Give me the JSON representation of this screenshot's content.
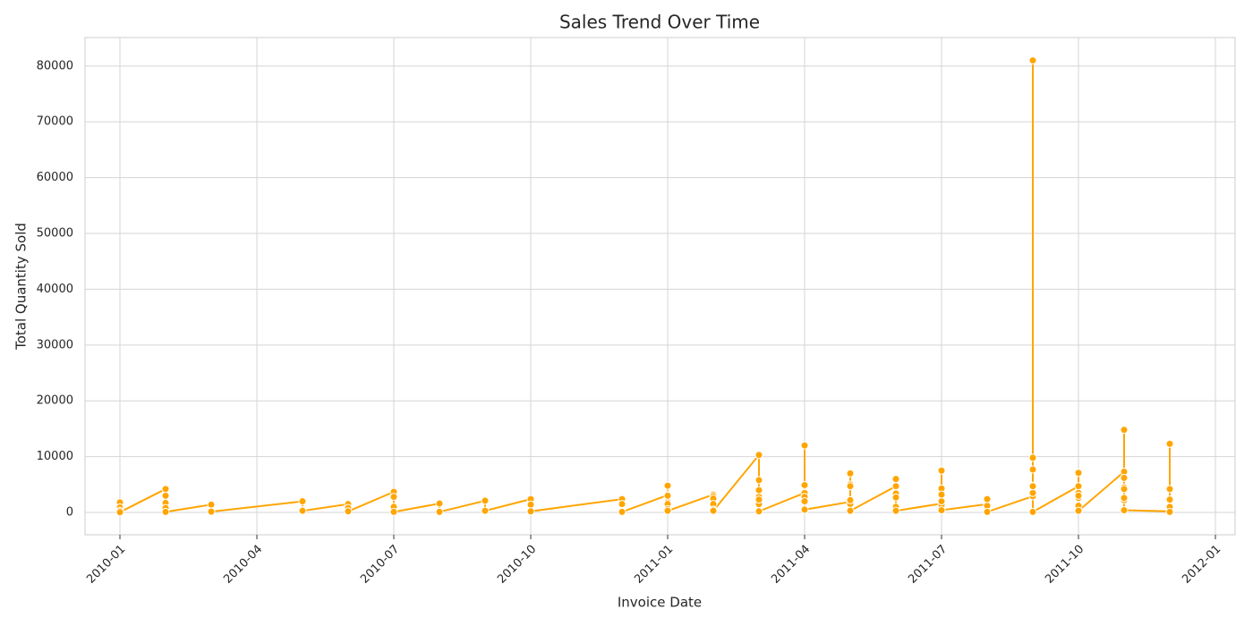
{
  "chart_data": {
    "type": "line",
    "title": "Sales Trend Over Time",
    "x_label": "Invoice Date",
    "y_label": "Total Quantity Sold",
    "x": [
      "2010-01",
      "2010-01",
      "2010-01",
      "2010-01",
      "2010-02",
      "2010-02",
      "2010-02",
      "2010-02",
      "2010-02",
      "2010-03",
      "2010-03",
      "2010-03",
      "2010-05",
      "2010-05",
      "2010-05",
      "2010-06",
      "2010-06",
      "2010-06",
      "2010-07",
      "2010-07",
      "2010-07",
      "2010-07",
      "2010-08",
      "2010-08",
      "2010-09",
      "2010-09",
      "2010-10",
      "2010-10",
      "2010-10",
      "2010-12",
      "2010-12",
      "2010-12",
      "2011-01",
      "2011-01",
      "2011-01",
      "2011-01",
      "2011-01",
      "2011-01",
      "2011-01",
      "2011-01",
      "2011-02",
      "2011-02",
      "2011-02",
      "2011-02",
      "2011-02",
      "2011-02",
      "2011-03",
      "2011-03",
      "2011-03",
      "2011-03",
      "2011-03",
      "2011-03",
      "2011-03",
      "2011-03",
      "2011-04",
      "2011-04",
      "2011-04",
      "2011-04",
      "2011-04",
      "2011-04",
      "2011-04",
      "2011-05",
      "2011-05",
      "2011-05",
      "2011-05",
      "2011-05",
      "2011-05",
      "2011-05",
      "2011-06",
      "2011-06",
      "2011-06",
      "2011-06",
      "2011-06",
      "2011-06",
      "2011-06",
      "2011-06",
      "2011-07",
      "2011-07",
      "2011-07",
      "2011-07",
      "2011-07",
      "2011-07",
      "2011-07",
      "2011-07",
      "2011-08",
      "2011-08",
      "2011-08",
      "2011-08",
      "2011-08",
      "2011-08",
      "2011-09",
      "2011-09",
      "2011-09",
      "2011-09",
      "2011-09",
      "2011-09",
      "2011-09",
      "2011-09",
      "2011-10",
      "2011-10",
      "2011-10",
      "2011-10",
      "2011-10",
      "2011-10",
      "2011-10",
      "2011-11",
      "2011-11",
      "2011-11",
      "2011-11",
      "2011-11",
      "2011-11",
      "2011-11",
      "2011-11",
      "2011-12",
      "2011-12",
      "2011-12",
      "2011-12",
      "2011-12",
      "2011-12"
    ],
    "values": [
      1800,
      900,
      300,
      50,
      4200,
      3000,
      1700,
      800,
      100,
      1400,
      200,
      150,
      2000,
      400,
      300,
      1500,
      800,
      200,
      3700,
      2800,
      1000,
      100,
      1600,
      100,
      2100,
      300,
      2400,
      1400,
      200,
      2400,
      1500,
      100,
      3100,
      3200,
      1800,
      4800,
      3000,
      1500,
      600,
      300,
      3200,
      2900,
      2500,
      1500,
      500,
      300,
      10300,
      5800,
      2800,
      1500,
      5800,
      4000,
      2300,
      200,
      3500,
      4700,
      2800,
      12000,
      4900,
      2000,
      500,
      1900,
      1500,
      7000,
      5000,
      4700,
      2200,
      300,
      4700,
      2900,
      3500,
      3400,
      6000,
      2700,
      1000,
      300,
      1600,
      1300,
      2000,
      4000,
      4300,
      7500,
      3200,
      400,
      1500,
      2300,
      2100,
      1200,
      2400,
      100,
      2900,
      9800,
      3500,
      7700,
      4800,
      81000,
      4700,
      100,
      4700,
      3500,
      2600,
      3000,
      7100,
      1200,
      300,
      7300,
      4500,
      2200,
      14800,
      6200,
      4200,
      2600,
      400,
      200,
      12300,
      4200,
      2300,
      1000,
      100
    ],
    "color": "#ffa500",
    "xticks": [
      "2010-01",
      "2010-04",
      "2010-07",
      "2010-10",
      "2011-01",
      "2011-04",
      "2011-07",
      "2011-10",
      "2012-01"
    ],
    "ylim": [
      -4000,
      85100
    ],
    "yticks": [
      0,
      10000,
      20000,
      30000,
      40000,
      50000,
      60000,
      70000,
      80000
    ],
    "grid": true
  }
}
